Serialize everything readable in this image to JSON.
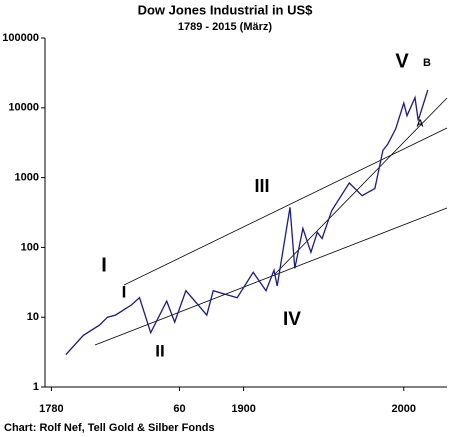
{
  "chart_data": {
    "type": "line",
    "title": "Dow Jones Industrial in US$",
    "subtitle": "1789 -  2015 (März)",
    "footer": "Chart: Rolf Nef, Tell Gold & Silber Fonds",
    "annotations": [
      "I",
      "I",
      "II",
      "III",
      "IV",
      "V",
      "B",
      "A"
    ],
    "log_y": true,
    "xlim": [
      1776,
      2027
    ],
    "xticks": [
      1780,
      {
        "value": 1860,
        "label": "60"
      },
      1900,
      2000
    ],
    "ylim": [
      1,
      100000
    ],
    "yticks": [
      1,
      10,
      100,
      1000,
      10000,
      100000
    ],
    "x": [
      1789,
      1800,
      1810,
      1815,
      1820,
      1830,
      1835,
      1842,
      1852,
      1857,
      1864,
      1877,
      1881,
      1896,
      1906,
      1914,
      1919,
      1921,
      1929,
      1932,
      1937,
      1942,
      1946,
      1949,
      1955,
      1966,
      1974,
      1982,
      1987,
      1990,
      1995,
      2000,
      2002,
      2007,
      2009,
      2015
    ],
    "series": [
      {
        "color": "#1a1a8c",
        "values": [
          2.9,
          5.5,
          7.7,
          10,
          10.7,
          15,
          19,
          6,
          17,
          8.5,
          24,
          10.7,
          24,
          19,
          44,
          24,
          47,
          28,
          375,
          50,
          187,
          85,
          164,
          134,
          337,
          840,
          550,
          700,
          2450,
          3000,
          5000,
          11700,
          7700,
          14000,
          6600,
          18000
        ]
      }
    ]
  }
}
